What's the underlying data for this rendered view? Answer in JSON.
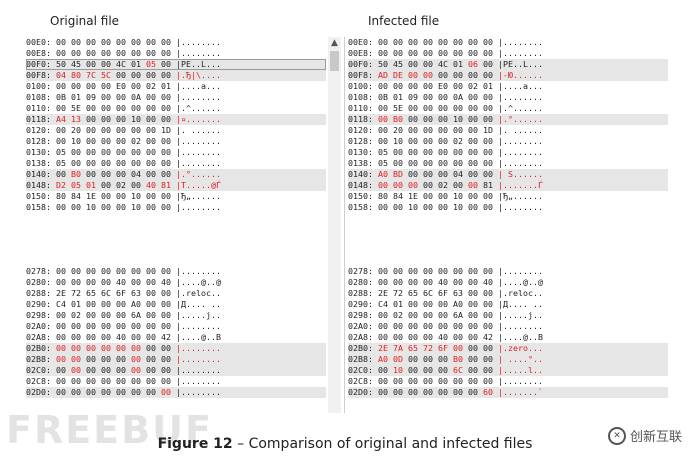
{
  "titles": {
    "original": "Original file",
    "infected": "Infected file"
  },
  "caption": {
    "label": "Figure 12",
    "text": " – Comparison of original and infected files"
  },
  "watermarks": {
    "left": "FREEBUF",
    "right": "创新互联"
  },
  "original": {
    "top": [
      {
        "offset": "00E0:",
        "bytes": [
          "00",
          "00",
          "00",
          "00",
          "00",
          "00",
          "00",
          "00"
        ],
        "ascii": "|........",
        "red": [],
        "asciiRed": false,
        "hl": false,
        "sel": false
      },
      {
        "offset": "00E8:",
        "bytes": [
          "00",
          "00",
          "00",
          "00",
          "00",
          "00",
          "00",
          "00"
        ],
        "ascii": "|........",
        "red": [],
        "asciiRed": false,
        "hl": false,
        "sel": false
      },
      {
        "offset": "00F0:",
        "bytes": [
          "50",
          "45",
          "00",
          "00",
          "4C",
          "01",
          "05",
          "00"
        ],
        "ascii": "|PE..L...",
        "red": [
          6
        ],
        "asciiRed": false,
        "hl": true,
        "sel": true
      },
      {
        "offset": "00F8:",
        "bytes": [
          "04",
          "80",
          "7C",
          "5C",
          "00",
          "00",
          "00",
          "00"
        ],
        "ascii": "|.Ђ|\\....",
        "red": [
          0,
          1,
          2,
          3
        ],
        "asciiRed": true,
        "hl": true,
        "sel": false
      },
      {
        "offset": "0100:",
        "bytes": [
          "00",
          "00",
          "00",
          "00",
          "E0",
          "00",
          "02",
          "01"
        ],
        "ascii": "|....a...",
        "red": [],
        "asciiRed": false,
        "hl": false,
        "sel": false
      },
      {
        "offset": "0108:",
        "bytes": [
          "0B",
          "01",
          "09",
          "00",
          "00",
          "0A",
          "00",
          "00"
        ],
        "ascii": "|........",
        "red": [],
        "asciiRed": false,
        "hl": false,
        "sel": false
      },
      {
        "offset": "0110:",
        "bytes": [
          "00",
          "5E",
          "00",
          "00",
          "00",
          "00",
          "00",
          "00"
        ],
        "ascii": "|.^......",
        "red": [],
        "asciiRed": false,
        "hl": false,
        "sel": false
      },
      {
        "offset": "0118:",
        "bytes": [
          "A4",
          "13",
          "00",
          "00",
          "00",
          "10",
          "00",
          "00"
        ],
        "ascii": "|¤.......",
        "red": [
          0,
          1
        ],
        "asciiRed": true,
        "hl": true,
        "sel": false
      },
      {
        "offset": "0120:",
        "bytes": [
          "00",
          "20",
          "00",
          "00",
          "00",
          "00",
          "00",
          "1D"
        ],
        "ascii": "|. ......",
        "red": [],
        "asciiRed": false,
        "hl": false,
        "sel": false
      },
      {
        "offset": "0128:",
        "bytes": [
          "00",
          "10",
          "00",
          "00",
          "00",
          "02",
          "00",
          "00"
        ],
        "ascii": "|........",
        "red": [],
        "asciiRed": false,
        "hl": false,
        "sel": false
      },
      {
        "offset": "0130:",
        "bytes": [
          "05",
          "00",
          "00",
          "00",
          "00",
          "00",
          "00",
          "00"
        ],
        "ascii": "|........",
        "red": [],
        "asciiRed": false,
        "hl": false,
        "sel": false
      },
      {
        "offset": "0138:",
        "bytes": [
          "05",
          "00",
          "00",
          "00",
          "00",
          "00",
          "00",
          "00"
        ],
        "ascii": "|........",
        "red": [],
        "asciiRed": false,
        "hl": false,
        "sel": false
      },
      {
        "offset": "0140:",
        "bytes": [
          "00",
          "B0",
          "00",
          "00",
          "00",
          "04",
          "00",
          "00"
        ],
        "ascii": "|.°......",
        "red": [
          1
        ],
        "asciiRed": true,
        "hl": true,
        "sel": false
      },
      {
        "offset": "0148:",
        "bytes": [
          "D2",
          "05",
          "01",
          "00",
          "02",
          "00",
          "40",
          "81"
        ],
        "ascii": "|Т.....@Ѓ",
        "red": [
          0,
          1,
          2,
          6,
          7
        ],
        "asciiRed": true,
        "hl": true,
        "sel": false
      },
      {
        "offset": "0150:",
        "bytes": [
          "80",
          "84",
          "1E",
          "00",
          "00",
          "10",
          "00",
          "00"
        ],
        "ascii": "|Ђ„......",
        "red": [],
        "asciiRed": false,
        "hl": false,
        "sel": false
      },
      {
        "offset": "0158:",
        "bytes": [
          "00",
          "00",
          "10",
          "00",
          "00",
          "10",
          "00",
          "00"
        ],
        "ascii": "|........",
        "red": [],
        "asciiRed": false,
        "hl": false,
        "sel": false
      }
    ],
    "bottom": [
      {
        "offset": "0278:",
        "bytes": [
          "00",
          "00",
          "00",
          "00",
          "00",
          "00",
          "00",
          "00"
        ],
        "ascii": "|........",
        "red": [],
        "asciiRed": false,
        "hl": false,
        "sel": false
      },
      {
        "offset": "0280:",
        "bytes": [
          "00",
          "00",
          "00",
          "00",
          "40",
          "00",
          "00",
          "40"
        ],
        "ascii": "|....@..@",
        "red": [],
        "asciiRed": false,
        "hl": false,
        "sel": false
      },
      {
        "offset": "0288:",
        "bytes": [
          "2E",
          "72",
          "65",
          "6C",
          "6F",
          "63",
          "00",
          "00"
        ],
        "ascii": "|.reloc..",
        "red": [],
        "asciiRed": false,
        "hl": false,
        "sel": false
      },
      {
        "offset": "0290:",
        "bytes": [
          "C4",
          "01",
          "00",
          "00",
          "00",
          "A0",
          "00",
          "00"
        ],
        "ascii": "|Д.... ..",
        "red": [],
        "asciiRed": false,
        "hl": false,
        "sel": false
      },
      {
        "offset": "0298:",
        "bytes": [
          "00",
          "02",
          "00",
          "00",
          "00",
          "6A",
          "00",
          "00"
        ],
        "ascii": "|.....j..",
        "red": [],
        "asciiRed": false,
        "hl": false,
        "sel": false
      },
      {
        "offset": "02A0:",
        "bytes": [
          "00",
          "00",
          "00",
          "00",
          "00",
          "00",
          "00",
          "00"
        ],
        "ascii": "|........",
        "red": [],
        "asciiRed": false,
        "hl": false,
        "sel": false
      },
      {
        "offset": "02A8:",
        "bytes": [
          "00",
          "00",
          "00",
          "00",
          "40",
          "00",
          "00",
          "42"
        ],
        "ascii": "|....@..B",
        "red": [],
        "asciiRed": false,
        "hl": false,
        "sel": false
      },
      {
        "offset": "02B0:",
        "bytes": [
          "00",
          "00",
          "00",
          "00",
          "00",
          "00",
          "00",
          "00"
        ],
        "ascii": "|........",
        "red": [
          0,
          1,
          2,
          3,
          4,
          5
        ],
        "asciiRed": true,
        "hl": true,
        "sel": false
      },
      {
        "offset": "02B8:",
        "bytes": [
          "00",
          "00",
          "00",
          "00",
          "00",
          "00",
          "00",
          "00"
        ],
        "ascii": "|........",
        "red": [
          0,
          1,
          5
        ],
        "asciiRed": true,
        "hl": true,
        "sel": false
      },
      {
        "offset": "02C0:",
        "bytes": [
          "00",
          "00",
          "00",
          "00",
          "00",
          "00",
          "00",
          "00"
        ],
        "ascii": "|........",
        "red": [
          1,
          5
        ],
        "asciiRed": false,
        "hl": true,
        "sel": false
      },
      {
        "offset": "02C8:",
        "bytes": [
          "00",
          "00",
          "00",
          "00",
          "00",
          "00",
          "00",
          "00"
        ],
        "ascii": "|........",
        "red": [],
        "asciiRed": false,
        "hl": false,
        "sel": false
      },
      {
        "offset": "02D0:",
        "bytes": [
          "00",
          "00",
          "00",
          "00",
          "00",
          "00",
          "00",
          "00"
        ],
        "ascii": "|........",
        "red": [
          7
        ],
        "asciiRed": false,
        "hl": true,
        "sel": false
      }
    ]
  },
  "infected": {
    "top": [
      {
        "offset": "00E0:",
        "bytes": [
          "00",
          "00",
          "00",
          "00",
          "00",
          "00",
          "00",
          "00"
        ],
        "ascii": "|........",
        "red": [],
        "asciiRed": false,
        "hl": false,
        "sel": false
      },
      {
        "offset": "00E8:",
        "bytes": [
          "00",
          "00",
          "00",
          "00",
          "00",
          "00",
          "00",
          "00"
        ],
        "ascii": "|........",
        "red": [],
        "asciiRed": false,
        "hl": false,
        "sel": false
      },
      {
        "offset": "00F0:",
        "bytes": [
          "50",
          "45",
          "00",
          "00",
          "4C",
          "01",
          "06",
          "00"
        ],
        "ascii": "|PE..L...",
        "red": [
          6
        ],
        "asciiRed": false,
        "hl": true,
        "sel": false
      },
      {
        "offset": "00F8:",
        "bytes": [
          "AD",
          "DE",
          "00",
          "00",
          "00",
          "00",
          "00",
          "00"
        ],
        "ascii": "|-Ю......",
        "red": [
          0,
          1,
          2,
          3
        ],
        "asciiRed": true,
        "hl": true,
        "sel": false
      },
      {
        "offset": "0100:",
        "bytes": [
          "00",
          "00",
          "00",
          "00",
          "E0",
          "00",
          "02",
          "01"
        ],
        "ascii": "|....a...",
        "red": [],
        "asciiRed": false,
        "hl": false,
        "sel": false
      },
      {
        "offset": "0108:",
        "bytes": [
          "0B",
          "01",
          "09",
          "00",
          "00",
          "0A",
          "00",
          "00"
        ],
        "ascii": "|........",
        "red": [],
        "asciiRed": false,
        "hl": false,
        "sel": false
      },
      {
        "offset": "0110:",
        "bytes": [
          "00",
          "5E",
          "00",
          "00",
          "00",
          "00",
          "00",
          "00"
        ],
        "ascii": "|.^......",
        "red": [],
        "asciiRed": false,
        "hl": false,
        "sel": false
      },
      {
        "offset": "0118:",
        "bytes": [
          "00",
          "B0",
          "00",
          "00",
          "00",
          "10",
          "00",
          "00"
        ],
        "ascii": "|.°......",
        "red": [
          0,
          1
        ],
        "asciiRed": true,
        "hl": true,
        "sel": false
      },
      {
        "offset": "0120:",
        "bytes": [
          "00",
          "20",
          "00",
          "00",
          "00",
          "00",
          "00",
          "1D"
        ],
        "ascii": "|. ......",
        "red": [],
        "asciiRed": false,
        "hl": false,
        "sel": false
      },
      {
        "offset": "0128:",
        "bytes": [
          "00",
          "10",
          "00",
          "00",
          "00",
          "02",
          "00",
          "00"
        ],
        "ascii": "|........",
        "red": [],
        "asciiRed": false,
        "hl": false,
        "sel": false
      },
      {
        "offset": "0130:",
        "bytes": [
          "05",
          "00",
          "00",
          "00",
          "00",
          "00",
          "00",
          "00"
        ],
        "ascii": "|........",
        "red": [],
        "asciiRed": false,
        "hl": false,
        "sel": false
      },
      {
        "offset": "0138:",
        "bytes": [
          "05",
          "00",
          "00",
          "00",
          "00",
          "00",
          "00",
          "00"
        ],
        "ascii": "|........",
        "red": [],
        "asciiRed": false,
        "hl": false,
        "sel": false
      },
      {
        "offset": "0140:",
        "bytes": [
          "A0",
          "BD",
          "00",
          "00",
          "00",
          "04",
          "00",
          "00"
        ],
        "ascii": "| S......",
        "red": [
          0,
          1
        ],
        "asciiRed": true,
        "hl": true,
        "sel": false
      },
      {
        "offset": "0148:",
        "bytes": [
          "00",
          "00",
          "00",
          "00",
          "02",
          "00",
          "00",
          "81"
        ],
        "ascii": "|.......Ѓ",
        "red": [
          0,
          1,
          2,
          6
        ],
        "asciiRed": true,
        "hl": true,
        "sel": false
      },
      {
        "offset": "0150:",
        "bytes": [
          "80",
          "84",
          "1E",
          "00",
          "00",
          "10",
          "00",
          "00"
        ],
        "ascii": "|Ђ„......",
        "red": [],
        "asciiRed": false,
        "hl": false,
        "sel": false
      },
      {
        "offset": "0158:",
        "bytes": [
          "00",
          "00",
          "10",
          "00",
          "00",
          "10",
          "00",
          "00"
        ],
        "ascii": "|........",
        "red": [],
        "asciiRed": false,
        "hl": false,
        "sel": false
      }
    ],
    "bottom": [
      {
        "offset": "0278:",
        "bytes": [
          "00",
          "00",
          "00",
          "00",
          "00",
          "00",
          "00",
          "00"
        ],
        "ascii": "|........",
        "red": [],
        "asciiRed": false,
        "hl": false,
        "sel": false
      },
      {
        "offset": "0280:",
        "bytes": [
          "00",
          "00",
          "00",
          "00",
          "40",
          "00",
          "00",
          "40"
        ],
        "ascii": "|....@..@",
        "red": [],
        "asciiRed": false,
        "hl": false,
        "sel": false
      },
      {
        "offset": "0288:",
        "bytes": [
          "2E",
          "72",
          "65",
          "6C",
          "6F",
          "63",
          "00",
          "00"
        ],
        "ascii": "|.reloc..",
        "red": [],
        "asciiRed": false,
        "hl": false,
        "sel": false
      },
      {
        "offset": "0290:",
        "bytes": [
          "C4",
          "01",
          "00",
          "00",
          "00",
          "A0",
          "00",
          "00"
        ],
        "ascii": "|Д.... ..",
        "red": [],
        "asciiRed": false,
        "hl": false,
        "sel": false
      },
      {
        "offset": "0298:",
        "bytes": [
          "00",
          "02",
          "00",
          "00",
          "00",
          "6A",
          "00",
          "00"
        ],
        "ascii": "|.....j..",
        "red": [],
        "asciiRed": false,
        "hl": false,
        "sel": false
      },
      {
        "offset": "02A0:",
        "bytes": [
          "00",
          "00",
          "00",
          "00",
          "00",
          "00",
          "00",
          "00"
        ],
        "ascii": "|........",
        "red": [],
        "asciiRed": false,
        "hl": false,
        "sel": false
      },
      {
        "offset": "02A8:",
        "bytes": [
          "00",
          "00",
          "00",
          "00",
          "40",
          "00",
          "00",
          "42"
        ],
        "ascii": "|....@..B",
        "red": [],
        "asciiRed": false,
        "hl": false,
        "sel": false
      },
      {
        "offset": "02B0:",
        "bytes": [
          "2E",
          "7A",
          "65",
          "72",
          "6F",
          "00",
          "00",
          "00"
        ],
        "ascii": "|.zero...",
        "red": [
          0,
          1,
          2,
          3,
          4,
          5
        ],
        "asciiRed": true,
        "hl": true,
        "sel": false
      },
      {
        "offset": "02B8:",
        "bytes": [
          "A0",
          "0D",
          "00",
          "00",
          "00",
          "B0",
          "00",
          "00"
        ],
        "ascii": "| ....°..",
        "red": [
          0,
          1,
          5
        ],
        "asciiRed": true,
        "hl": true,
        "sel": false
      },
      {
        "offset": "02C0:",
        "bytes": [
          "00",
          "10",
          "00",
          "00",
          "00",
          "6C",
          "00",
          "00"
        ],
        "ascii": "|.....l..",
        "red": [
          1,
          5
        ],
        "asciiRed": true,
        "hl": true,
        "sel": false
      },
      {
        "offset": "02C8:",
        "bytes": [
          "00",
          "00",
          "00",
          "00",
          "00",
          "00",
          "00",
          "00"
        ],
        "ascii": "|........",
        "red": [],
        "asciiRed": false,
        "hl": false,
        "sel": false
      },
      {
        "offset": "02D0:",
        "bytes": [
          "00",
          "00",
          "00",
          "00",
          "00",
          "00",
          "00",
          "60"
        ],
        "ascii": "|.......`",
        "red": [
          7
        ],
        "asciiRed": true,
        "hl": true,
        "sel": false
      }
    ]
  }
}
